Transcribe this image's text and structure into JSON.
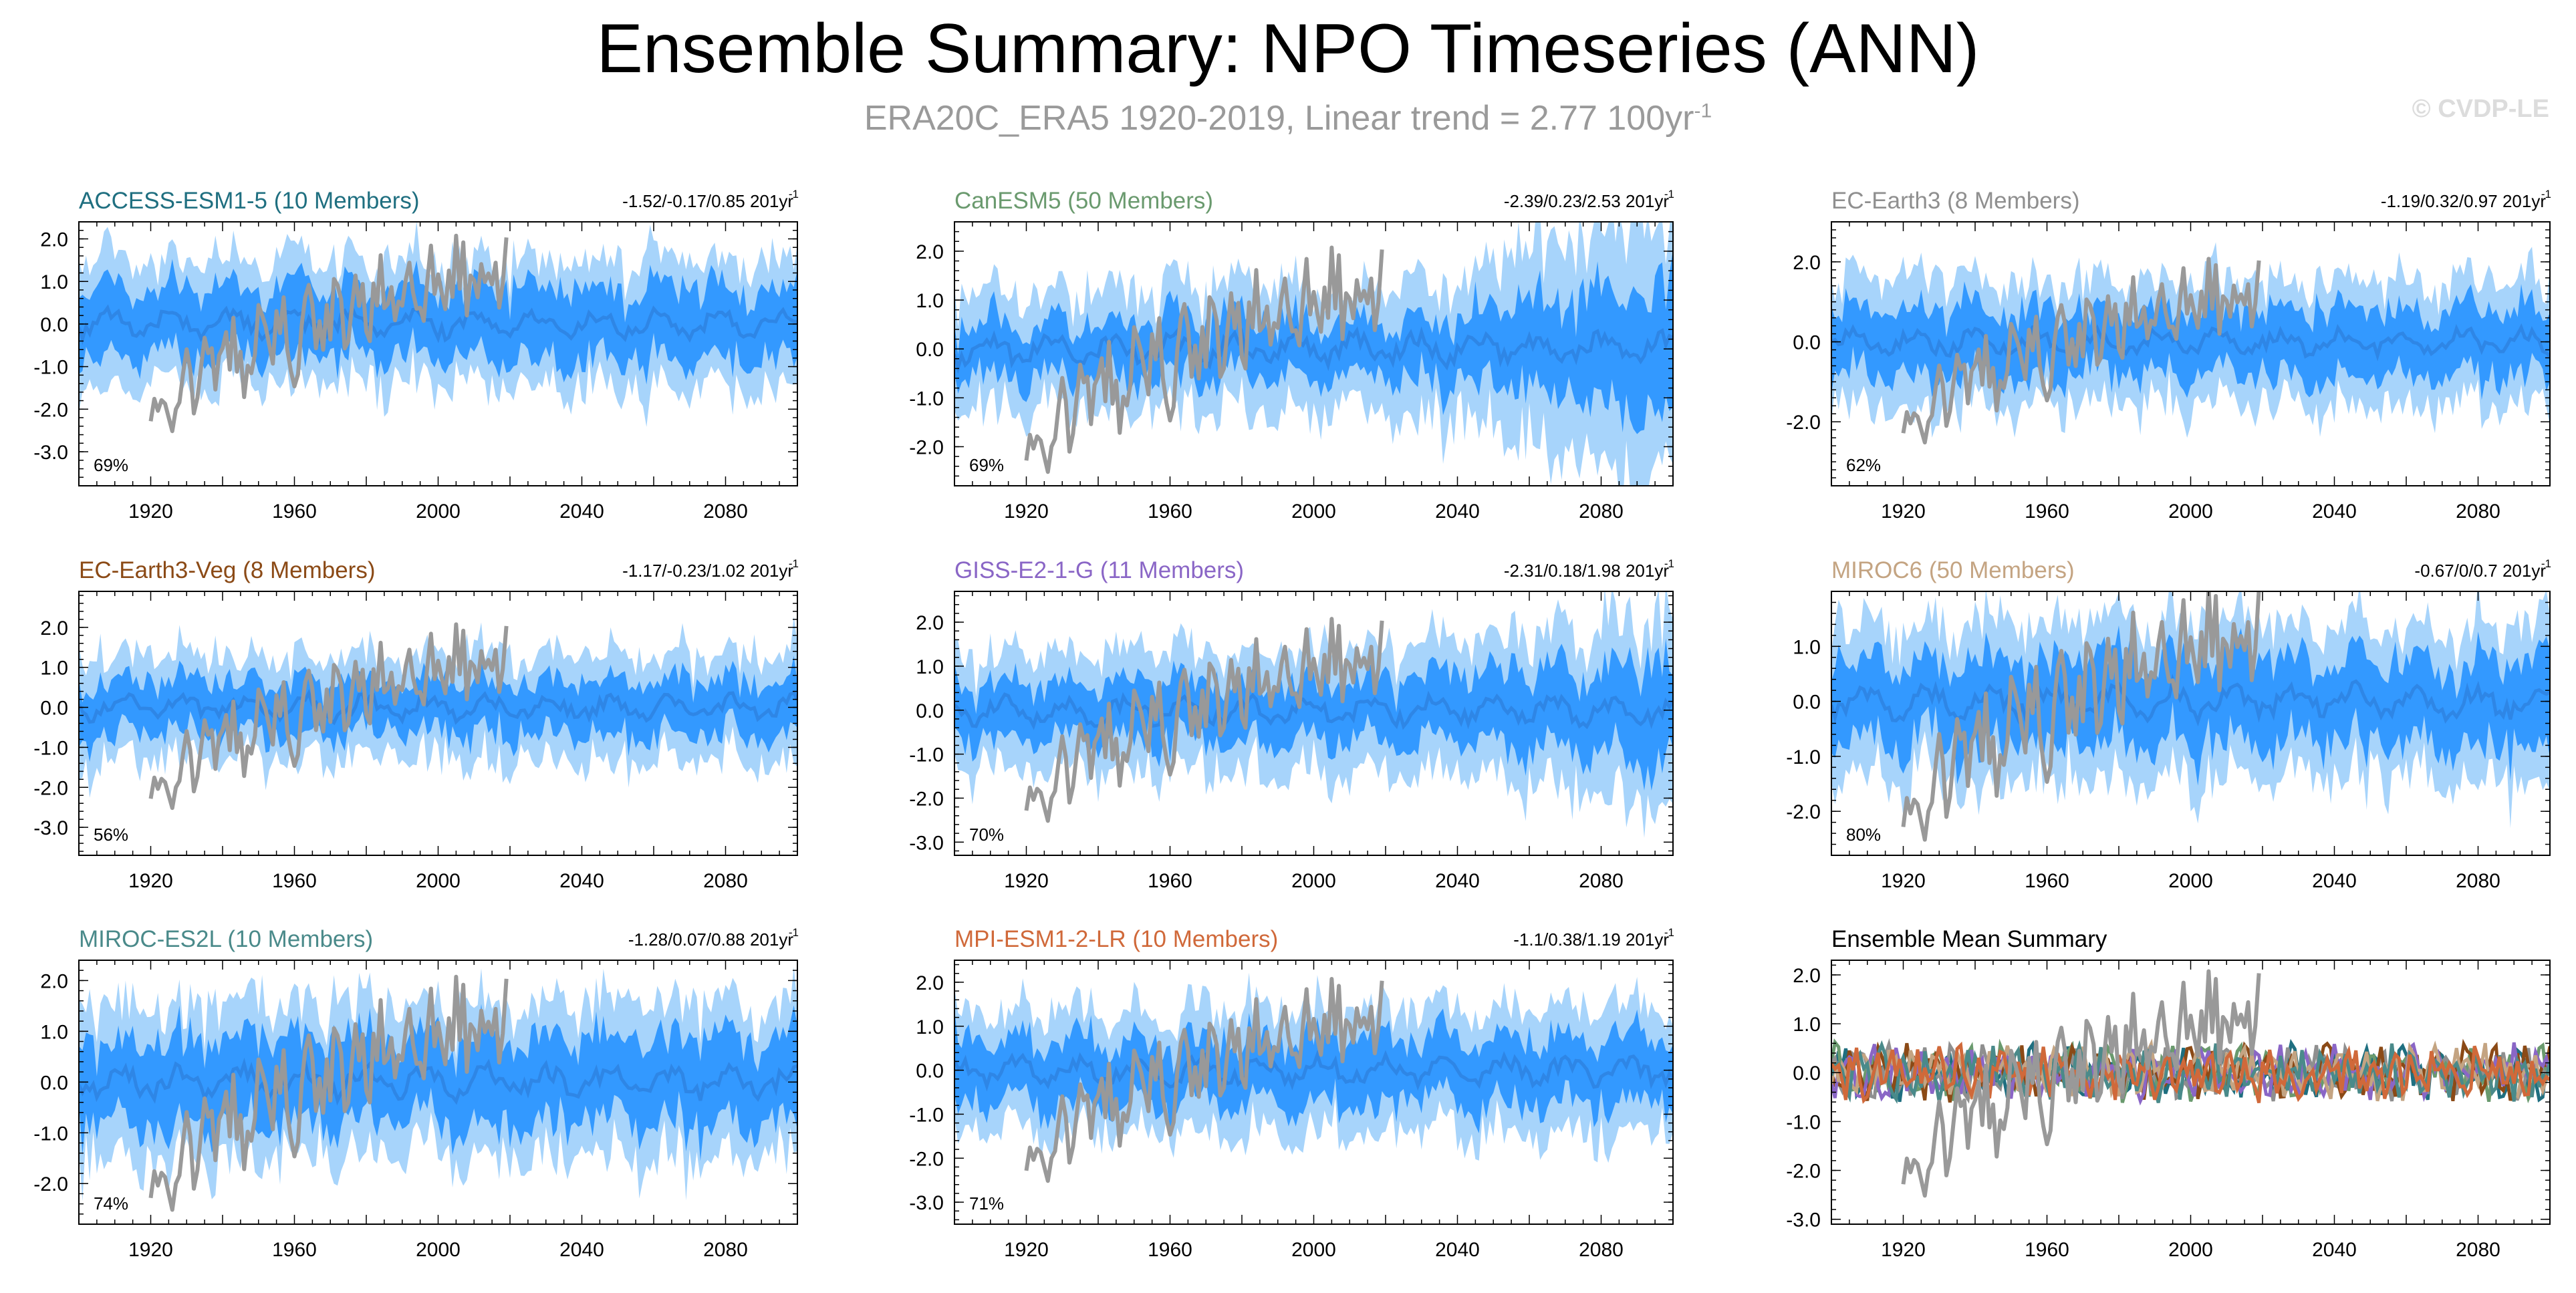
{
  "page": {
    "title": "Ensemble Summary: NPO Timeseries (ANN)",
    "subtitle_main": "ERA20C_ERA5 1920-2019, Linear trend = 2.77 100yr",
    "subtitle_sup": "-1",
    "credit": "© CVDP-LE"
  },
  "colors": {
    "band_outer": "#a7d4fb",
    "band_inner": "#3399ff",
    "ens_mean_line": "#2e86e6",
    "observations": "#999999",
    "axes": "#000000"
  },
  "chart_data": [
    {
      "type": "area",
      "title": "ACCESS-ESM1-5 (10 Members)",
      "title_color": "#1f6f80",
      "trend": "-1.52/-0.17/0.85 201yr",
      "trend_sup": "-1",
      "percent": "69%",
      "ylim": [
        -3.8,
        2.4
      ],
      "yticks": [
        -3,
        -2,
        -1,
        0,
        1,
        2
      ],
      "ytick_labels": [
        "-3.0",
        "-2.0",
        "-1.0",
        "0.0",
        "1.0",
        "2.0"
      ],
      "xlim": [
        1900,
        2100
      ],
      "xticks": [
        1920,
        1960,
        2000,
        2040,
        2080
      ],
      "seed": 11,
      "inner_amp": 1.0,
      "outer_amp": 1.0,
      "spread_growth": 0.0
    },
    {
      "type": "area",
      "title": "CanESM5 (50 Members)",
      "title_color": "#6a9a6e",
      "trend": "-2.39/0.23/2.53 201yr",
      "trend_sup": "-1",
      "percent": "69%",
      "ylim": [
        -2.8,
        2.6
      ],
      "yticks": [
        -2,
        -1,
        0,
        1,
        2
      ],
      "ytick_labels": [
        "-2.0",
        "-1.0",
        "0.0",
        "1.0",
        "2.0"
      ],
      "xlim": [
        1900,
        2100
      ],
      "xticks": [
        1920,
        1960,
        2000,
        2040,
        2080
      ],
      "seed": 23,
      "inner_amp": 0.7,
      "outer_amp": 1.0,
      "spread_growth": 1.2
    },
    {
      "type": "area",
      "title": "EC-Earth3 (8 Members)",
      "title_color": "#8f8f8f",
      "trend": "-1.19/0.32/0.97 201yr",
      "trend_sup": "-1",
      "percent": "62%",
      "ylim": [
        -3.6,
        3.0
      ],
      "yticks": [
        -2,
        0,
        2
      ],
      "ytick_labels": [
        "-2.0",
        "0.0",
        "2.0"
      ],
      "xlim": [
        1900,
        2100
      ],
      "xticks": [
        1920,
        1960,
        2000,
        2040,
        2080
      ],
      "seed": 37,
      "inner_amp": 1.0,
      "outer_amp": 1.1,
      "spread_growth": 0.0
    },
    {
      "type": "area",
      "title": "EC-Earth3-Veg (8 Members)",
      "title_color": "#8b4a16",
      "trend": "-1.17/-0.23/1.02 201yr",
      "trend_sup": "-1",
      "percent": "56%",
      "ylim": [
        -3.7,
        2.9
      ],
      "yticks": [
        -3,
        -2,
        -1,
        0,
        1,
        2
      ],
      "ytick_labels": [
        "-3.0",
        "-2.0",
        "-1.0",
        "0.0",
        "1.0",
        "2.0"
      ],
      "xlim": [
        1900,
        2100
      ],
      "xticks": [
        1920,
        1960,
        2000,
        2040,
        2080
      ],
      "seed": 41,
      "inner_amp": 0.8,
      "outer_amp": 1.0,
      "spread_growth": 0.0
    },
    {
      "type": "area",
      "title": "GISS-E2-1-G (11 Members)",
      "title_color": "#8a66c6",
      "trend": "-2.31/0.18/1.98 201yr",
      "trend_sup": "-1",
      "percent": "70%",
      "ylim": [
        -3.3,
        2.7
      ],
      "yticks": [
        -3,
        -2,
        -1,
        0,
        1,
        2
      ],
      "ytick_labels": [
        "-3.0",
        "-2.0",
        "-1.0",
        "0.0",
        "1.0",
        "2.0"
      ],
      "xlim": [
        1900,
        2100
      ],
      "xticks": [
        1920,
        1960,
        2000,
        2040,
        2080
      ],
      "seed": 53,
      "inner_amp": 0.8,
      "outer_amp": 1.0,
      "spread_growth": 0.6
    },
    {
      "type": "area",
      "title": "MIROC6 (50 Members)",
      "title_color": "#c4a482",
      "trend": "-0.67/0/0.7 201yr",
      "trend_sup": "-1",
      "percent": "80%",
      "ylim": [
        -2.8,
        2.0
      ],
      "yticks": [
        -2,
        -1,
        0,
        1
      ],
      "ytick_labels": [
        "-2.0",
        "-1.0",
        "0.0",
        "1.0"
      ],
      "xlim": [
        1900,
        2100
      ],
      "xticks": [
        1920,
        1960,
        2000,
        2040,
        2080
      ],
      "seed": 67,
      "inner_amp": 0.9,
      "outer_amp": 1.0,
      "spread_growth": 0.0
    },
    {
      "type": "area",
      "title": "MIROC-ES2L (10 Members)",
      "title_color": "#4a8a8a",
      "trend": "-1.28/0.07/0.88 201yr",
      "trend_sup": "-1",
      "percent": "74%",
      "ylim": [
        -2.8,
        2.4
      ],
      "yticks": [
        -2,
        -1,
        0,
        1,
        2
      ],
      "ytick_labels": [
        "-2.0",
        "-1.0",
        "0.0",
        "1.0",
        "2.0"
      ],
      "xlim": [
        1900,
        2100
      ],
      "xticks": [
        1920,
        1960,
        2000,
        2040,
        2080
      ],
      "seed": 79,
      "inner_amp": 1.0,
      "outer_amp": 1.0,
      "spread_growth": 0.0
    },
    {
      "type": "area",
      "title": "MPI-ESM1-2-LR (10 Members)",
      "title_color": "#d0693a",
      "trend": "-1.1/0.38/1.19 201yr",
      "trend_sup": "-1",
      "percent": "71%",
      "ylim": [
        -3.5,
        2.5
      ],
      "yticks": [
        -3,
        -2,
        -1,
        0,
        1,
        2
      ],
      "ytick_labels": [
        "-3.0",
        "-2.0",
        "-1.0",
        "0.0",
        "1.0",
        "2.0"
      ],
      "xlim": [
        1900,
        2100
      ],
      "xticks": [
        1920,
        1960,
        2000,
        2040,
        2080
      ],
      "seed": 83,
      "inner_amp": 0.9,
      "outer_amp": 1.0,
      "spread_growth": 0.0
    },
    {
      "type": "line",
      "title": "Ensemble Mean Summary",
      "title_color": "#000000",
      "ylim": [
        -3.1,
        2.3
      ],
      "yticks": [
        -3,
        -2,
        -1,
        0,
        1,
        2
      ],
      "ytick_labels": [
        "-3.0",
        "-2.0",
        "-1.0",
        "0.0",
        "1.0",
        "2.0"
      ],
      "xlim": [
        1900,
        2100
      ],
      "xticks": [
        1920,
        1960,
        2000,
        2040,
        2080
      ],
      "series_colors": [
        "#1f6f80",
        "#6a9a6e",
        "#8f8f8f",
        "#8b4a16",
        "#8a66c6",
        "#c4a482",
        "#4a8a8a",
        "#d0693a"
      ]
    }
  ]
}
